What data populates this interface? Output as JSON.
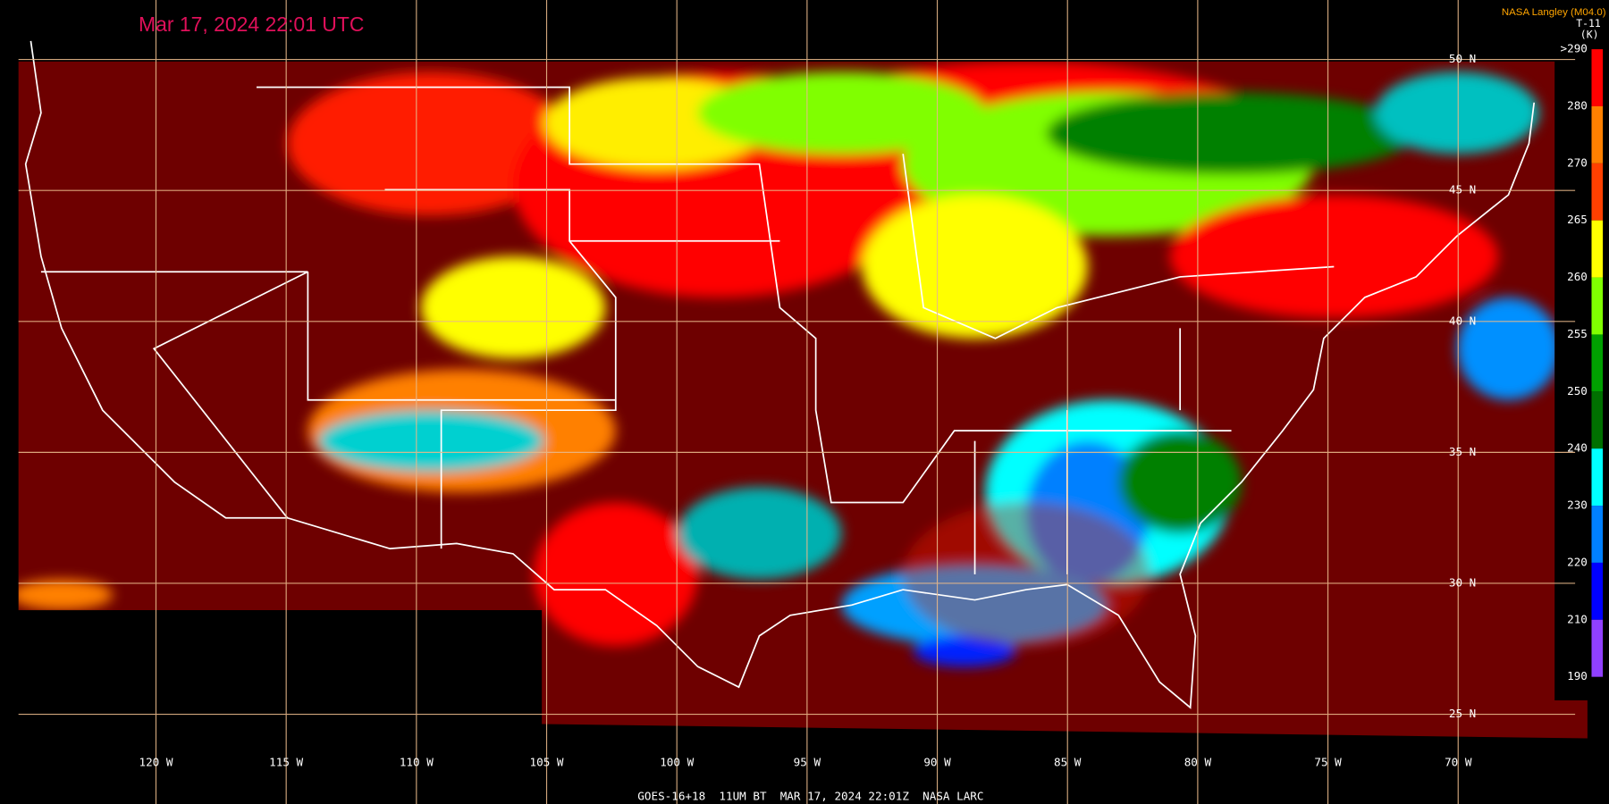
{
  "header": {
    "timestamp": "Mar 17, 2024 22:01 UTC"
  },
  "credits": {
    "producer": "NASA Langley (M04.0)",
    "channel": "T-11",
    "unit": "(K)"
  },
  "colorbar": {
    "labels": [
      ">290",
      "280",
      "270",
      "265",
      "260",
      "255",
      "250",
      "240",
      "230",
      "220",
      "210",
      "190"
    ]
  },
  "longitude_labels": [
    "120 W",
    "115 W",
    "110 W",
    "105 W",
    "100 W",
    "95 W",
    "90 W",
    "85 W",
    "80 W",
    "75 W",
    "70 W"
  ],
  "latitude_labels": [
    "50 N",
    "45 N",
    "40 N",
    "35 N",
    "30 N",
    "25 N"
  ],
  "footer": {
    "caption": "GOES-16+18  11UM BT  MAR 17, 2024 22:01Z  NASA LARC"
  }
}
